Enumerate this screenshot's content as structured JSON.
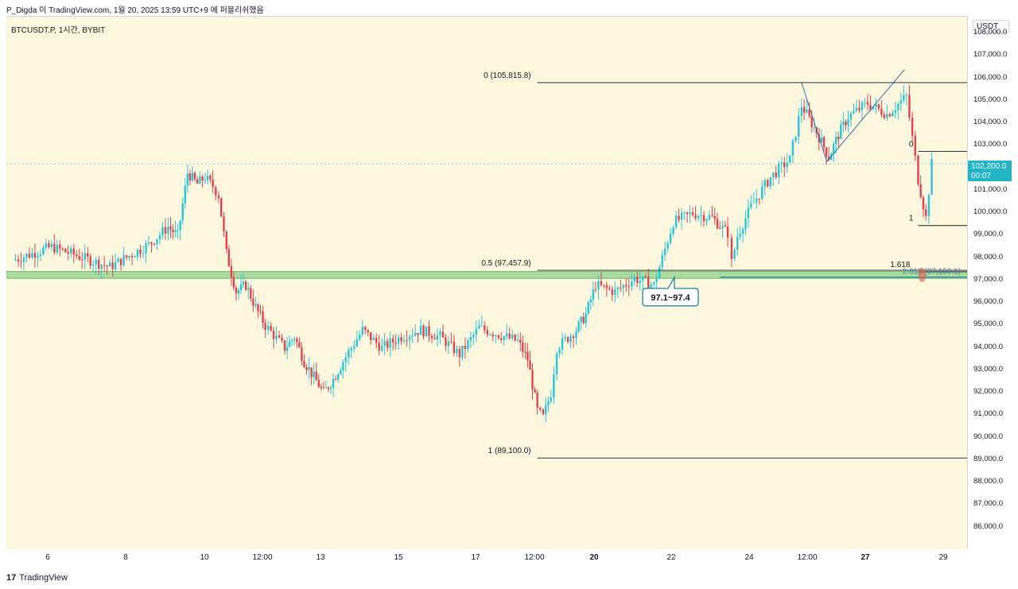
{
  "header": {
    "text": "P_Digda 이 TradingView.com, 1월 20, 2025 13:59 UTC+9 에 퍼블리쉬했음"
  },
  "symbol_label": "BTCUSDT.P, 1시간, BYBIT",
  "price_axis": {
    "currency": "USDT",
    "last_price": "102,200.0",
    "countdown": "00:07"
  },
  "footer": {
    "logo_mark": "17",
    "logo_text": "TradingView"
  },
  "colors": {
    "up": "#26c6da",
    "down": "#e0424f",
    "zone": "#8ed18a",
    "fib": "#131722",
    "background": "#fdf8dd",
    "accent": "#22b5c7"
  },
  "chart_data": {
    "type": "candlestick",
    "title": "BTCUSDT.P, 1시간, BYBIT",
    "ylim": [
      85000,
      108750
    ],
    "y_ticks": [
      "108,000.0",
      "107,000.0",
      "106,000.0",
      "105,000.0",
      "104,000.0",
      "103,000.0",
      "102,000.0",
      "101,000.0",
      "100,000.0",
      "99,000.0",
      "98,000.0",
      "97,000.0",
      "96,000.0",
      "95,000.0",
      "94,000.0",
      "93,000.0",
      "92,000.0",
      "91,000.0",
      "90,000.0",
      "89,000.0",
      "88,000.0",
      "87,000.0",
      "86,000.0"
    ],
    "x_ticks": [
      "6",
      "8",
      "10",
      "12:00",
      "13",
      "15",
      "17",
      "12:00",
      "20",
      "22",
      "24",
      "12:00",
      "27",
      "29"
    ],
    "price_path": [
      [
        0,
        97900
      ],
      [
        2,
        98500
      ],
      [
        3,
        98200
      ],
      [
        5,
        97600
      ],
      [
        6,
        98100
      ],
      [
        7,
        98600
      ],
      [
        8,
        99400
      ],
      [
        8.5,
        99000
      ],
      [
        9,
        101800
      ],
      [
        9.5,
        101300
      ],
      [
        9.9,
        101600
      ],
      [
        10.3,
        101200
      ],
      [
        10.6,
        100800
      ],
      [
        11,
        98200
      ],
      [
        11.5,
        96500
      ],
      [
        12,
        96800
      ],
      [
        12.5,
        95800
      ],
      [
        13,
        95000
      ],
      [
        14,
        94000
      ],
      [
        14.5,
        94500
      ],
      [
        15,
        93400
      ],
      [
        15.5,
        92700
      ],
      [
        16,
        92000
      ],
      [
        16.5,
        92600
      ],
      [
        17,
        93400
      ],
      [
        18,
        94800
      ],
      [
        19,
        94000
      ],
      [
        20,
        94500
      ],
      [
        21,
        94800
      ],
      [
        22,
        94500
      ],
      [
        23,
        93700
      ],
      [
        24,
        94900
      ],
      [
        25,
        94600
      ],
      [
        26,
        94300
      ],
      [
        26.5,
        93500
      ],
      [
        27,
        91200
      ],
      [
        27.3,
        90900
      ],
      [
        27.7,
        92000
      ],
      [
        28,
        94000
      ],
      [
        29,
        94800
      ],
      [
        29.5,
        95500
      ],
      [
        30,
        96800
      ],
      [
        31,
        96500
      ],
      [
        32,
        97100
      ],
      [
        33,
        96800
      ],
      [
        34,
        99600
      ],
      [
        35,
        100000
      ],
      [
        36,
        99800
      ],
      [
        36.8,
        99100
      ],
      [
        37,
        97800
      ],
      [
        37.3,
        99000
      ],
      [
        38,
        100300
      ],
      [
        39,
        101600
      ],
      [
        40,
        102400
      ],
      [
        40.6,
        104800
      ],
      [
        41,
        104200
      ],
      [
        41.5,
        103400
      ],
      [
        42,
        102500
      ],
      [
        42.5,
        103500
      ],
      [
        43,
        104300
      ],
      [
        44,
        104900
      ],
      [
        45,
        104400
      ],
      [
        46,
        105200
      ],
      [
        46.6,
        101500
      ],
      [
        47,
        99800
      ],
      [
        47.3,
        102200
      ]
    ],
    "fib_retracement": {
      "levels": [
        {
          "level": "0",
          "label": "0 (105,815.8)",
          "price": 105815.8
        },
        {
          "level": "0.5",
          "label": "0.5 (97,457.9)",
          "price": 97457.9
        },
        {
          "level": "1",
          "label": "1 (89,100.0)",
          "price": 89100.0
        }
      ]
    },
    "fib_extension": {
      "levels": [
        {
          "label": "0",
          "price": 102750
        },
        {
          "label": "1",
          "price": 99450
        },
        {
          "label": "1.618",
          "price": 97390
        },
        {
          "label": "2.618 (97,150.1)",
          "price": 97150.1
        }
      ]
    },
    "support_zone": {
      "low": 97100,
      "high": 97400
    },
    "zone_callout": "97.1~97.4",
    "last_price": 102200.0
  }
}
